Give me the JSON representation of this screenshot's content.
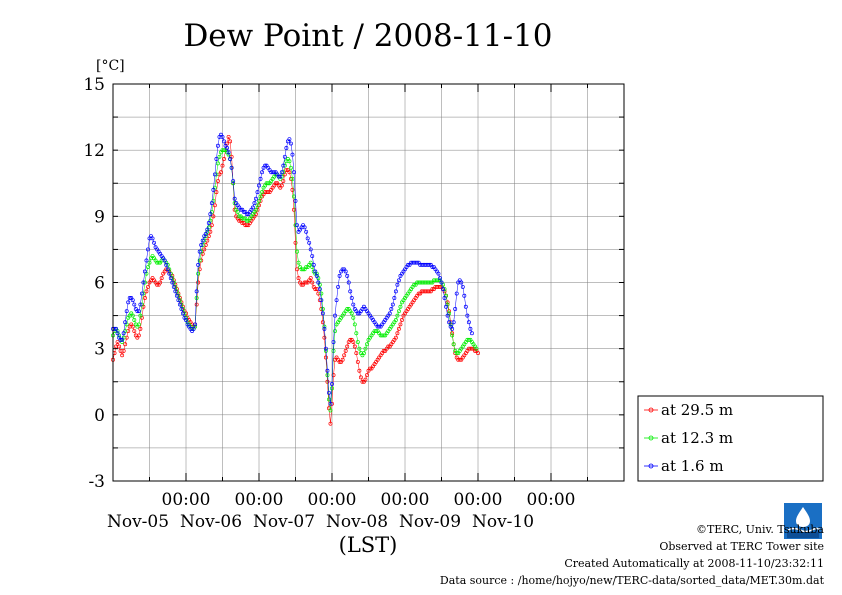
{
  "chart_data": {
    "type": "scatter",
    "title": "Dew Point / 2008-11-10",
    "ylabel": "[°C]",
    "xlabel": "(LST)",
    "ylim": [
      -3,
      15
    ],
    "yticks": [
      -3,
      0,
      3,
      6,
      9,
      12,
      15
    ],
    "xlim": [
      "2008-11-04 00:00",
      "2008-11-11 00:00"
    ],
    "time_tick_label": "00:00",
    "date_labels": [
      "Nov-05",
      "Nov-06",
      "Nov-07",
      "Nov-08",
      "Nov-09",
      "Nov-10"
    ],
    "grid": true,
    "legend_position": "right",
    "x_step_minutes": 30,
    "series": [
      {
        "name": "at 29.5 m",
        "color": "#ff0000",
        "start": "2008-11-04 00:00",
        "values": [
          2.5,
          2.8,
          3.1,
          3.3,
          3.1,
          2.9,
          2.7,
          2.9,
          3.2,
          3.5,
          3.8,
          4.0,
          4.1,
          4.0,
          3.8,
          3.6,
          3.5,
          3.6,
          3.9,
          4.4,
          4.9,
          5.3,
          5.6,
          5.8,
          6.0,
          6.1,
          6.2,
          6.1,
          6.0,
          5.9,
          5.9,
          6.0,
          6.2,
          6.4,
          6.5,
          6.6,
          6.6,
          6.5,
          6.4,
          6.3,
          6.1,
          5.9,
          5.7,
          5.5,
          5.3,
          5.1,
          4.9,
          4.7,
          4.6,
          4.4,
          4.3,
          4.2,
          4.1,
          4.0,
          4.1,
          5.0,
          6.0,
          6.6,
          7.0,
          7.3,
          7.5,
          7.7,
          7.9,
          8.1,
          8.3,
          8.6,
          9.0,
          9.5,
          10.1,
          10.6,
          10.9,
          11.0,
          11.3,
          11.6,
          12.0,
          12.3,
          12.6,
          12.4,
          11.7,
          10.5,
          9.3,
          9.0,
          8.9,
          8.8,
          8.8,
          8.7,
          8.7,
          8.6,
          8.6,
          8.6,
          8.7,
          8.8,
          8.9,
          9.0,
          9.1,
          9.3,
          9.5,
          9.7,
          9.9,
          10.0,
          10.1,
          10.1,
          10.1,
          10.1,
          10.2,
          10.3,
          10.4,
          10.5,
          10.5,
          10.4,
          10.3,
          10.4,
          10.6,
          10.9,
          11.1,
          11.1,
          11.0,
          10.7,
          10.2,
          9.3,
          7.8,
          6.6,
          6.2,
          6.0,
          5.9,
          5.9,
          6.0,
          6.0,
          6.0,
          6.1,
          6.2,
          6.0,
          5.8,
          5.7,
          5.7,
          5.5,
          5.2,
          4.8,
          4.2,
          3.5,
          2.6,
          1.5,
          0.3,
          -0.4,
          0.5,
          1.8,
          2.5,
          2.6,
          2.5,
          2.4,
          2.4,
          2.5,
          2.7,
          2.9,
          3.1,
          3.3,
          3.4,
          3.4,
          3.3,
          3.1,
          2.8,
          2.4,
          2.0,
          1.7,
          1.5,
          1.5,
          1.6,
          1.8,
          2.0,
          2.1,
          2.1,
          2.2,
          2.3,
          2.4,
          2.5,
          2.6,
          2.7,
          2.8,
          2.9,
          2.9,
          3.0,
          3.1,
          3.1,
          3.2,
          3.3,
          3.4,
          3.5,
          3.7,
          3.9,
          4.1,
          4.3,
          4.5,
          4.6,
          4.7,
          4.8,
          4.9,
          5.0,
          5.1,
          5.2,
          5.3,
          5.4,
          5.5,
          5.5,
          5.6,
          5.6,
          5.6,
          5.6,
          5.6,
          5.6,
          5.6,
          5.7,
          5.7,
          5.8,
          5.8,
          5.8,
          5.8,
          5.8,
          5.7,
          5.6,
          5.4,
          5.1,
          4.7,
          4.2,
          3.7,
          3.2,
          2.8,
          2.6,
          2.5,
          2.5,
          2.5,
          2.6,
          2.7,
          2.8,
          2.9,
          3.0,
          3.0,
          3.0,
          3.0,
          2.9,
          2.9,
          2.8
        ]
      },
      {
        "name": "at 12.3 m",
        "color": "#00ee00",
        "start": "2008-11-04 00:00",
        "values": [
          3.6,
          3.8,
          3.9,
          3.8,
          3.6,
          3.4,
          3.3,
          3.5,
          3.8,
          4.1,
          4.4,
          4.5,
          4.6,
          4.5,
          4.3,
          4.1,
          4.0,
          4.1,
          4.5,
          5.0,
          5.5,
          6.0,
          6.4,
          6.7,
          6.9,
          7.1,
          7.2,
          7.1,
          7.0,
          6.9,
          6.9,
          6.9,
          7.0,
          7.1,
          7.0,
          6.9,
          6.8,
          6.6,
          6.4,
          6.2,
          6.0,
          5.8,
          5.6,
          5.4,
          5.2,
          5.0,
          4.8,
          4.6,
          4.4,
          4.2,
          4.1,
          4.0,
          3.9,
          3.9,
          4.0,
          5.3,
          6.4,
          7.0,
          7.4,
          7.7,
          7.9,
          8.1,
          8.3,
          8.5,
          8.8,
          9.2,
          9.7,
          10.3,
          10.9,
          11.4,
          11.7,
          11.9,
          12.0,
          12.0,
          12.0,
          11.9,
          11.8,
          11.6,
          11.2,
          10.5,
          9.6,
          9.3,
          9.2,
          9.0,
          9.0,
          8.9,
          8.9,
          8.9,
          8.8,
          8.8,
          8.9,
          9.0,
          9.1,
          9.2,
          9.3,
          9.5,
          9.7,
          9.9,
          10.1,
          10.3,
          10.4,
          10.5,
          10.5,
          10.5,
          10.6,
          10.7,
          10.8,
          10.9,
          10.9,
          10.8,
          10.7,
          10.8,
          11.0,
          11.3,
          11.5,
          11.6,
          11.5,
          11.2,
          10.7,
          9.9,
          8.6,
          7.4,
          6.9,
          6.7,
          6.6,
          6.6,
          6.6,
          6.7,
          6.7,
          6.8,
          6.9,
          6.7,
          6.5,
          6.4,
          6.4,
          6.2,
          5.9,
          5.5,
          4.8,
          4.0,
          2.9,
          1.8,
          0.7,
          0.2,
          1.2,
          2.9,
          3.8,
          4.1,
          4.2,
          4.3,
          4.4,
          4.5,
          4.6,
          4.7,
          4.8,
          4.8,
          4.7,
          4.6,
          4.4,
          4.1,
          3.7,
          3.3,
          3.0,
          2.8,
          2.7,
          2.8,
          3.0,
          3.2,
          3.4,
          3.5,
          3.6,
          3.7,
          3.8,
          3.8,
          3.8,
          3.7,
          3.6,
          3.6,
          3.6,
          3.6,
          3.7,
          3.8,
          3.9,
          4.0,
          4.1,
          4.2,
          4.3,
          4.5,
          4.7,
          4.9,
          5.1,
          5.2,
          5.3,
          5.4,
          5.5,
          5.6,
          5.7,
          5.8,
          5.9,
          5.9,
          6.0,
          6.0,
          6.0,
          6.0,
          6.0,
          6.0,
          6.0,
          6.0,
          6.0,
          6.0,
          6.0,
          6.1,
          6.1,
          6.1,
          6.1,
          6.1,
          6.0,
          5.9,
          5.7,
          5.4,
          5.0,
          4.6,
          4.1,
          3.6,
          3.2,
          2.9,
          2.8,
          2.8,
          2.9,
          3.0,
          3.1,
          3.2,
          3.3,
          3.4,
          3.4,
          3.4,
          3.3,
          3.2,
          3.1,
          3.0
        ]
      },
      {
        "name": "at 1.6 m",
        "color": "#0000ff",
        "start": "2008-11-04 00:00",
        "values": [
          3.9,
          3.9,
          3.9,
          3.7,
          3.5,
          3.4,
          3.4,
          3.7,
          4.2,
          4.7,
          5.1,
          5.3,
          5.3,
          5.2,
          5.0,
          4.8,
          4.7,
          4.7,
          5.0,
          5.5,
          6.0,
          6.5,
          7.0,
          7.5,
          8.0,
          8.1,
          8.0,
          7.8,
          7.6,
          7.5,
          7.4,
          7.3,
          7.2,
          7.1,
          7.0,
          6.8,
          6.6,
          6.4,
          6.2,
          6.0,
          5.8,
          5.6,
          5.4,
          5.2,
          5.0,
          4.8,
          4.6,
          4.4,
          4.3,
          4.1,
          4.0,
          3.9,
          3.8,
          3.9,
          4.1,
          5.6,
          6.8,
          7.4,
          7.7,
          7.9,
          8.1,
          8.2,
          8.4,
          8.7,
          9.1,
          9.6,
          10.2,
          10.9,
          11.6,
          12.2,
          12.6,
          12.7,
          12.6,
          12.4,
          12.2,
          12.1,
          11.9,
          11.6,
          11.2,
          10.6,
          9.8,
          9.6,
          9.5,
          9.4,
          9.3,
          9.3,
          9.2,
          9.2,
          9.1,
          9.1,
          9.2,
          9.3,
          9.4,
          9.6,
          9.8,
          10.1,
          10.4,
          10.7,
          11.0,
          11.2,
          11.3,
          11.3,
          11.2,
          11.1,
          11.0,
          11.0,
          11.0,
          11.0,
          10.9,
          10.8,
          10.8,
          11.0,
          11.3,
          11.7,
          12.1,
          12.4,
          12.5,
          12.3,
          11.8,
          11.0,
          9.7,
          8.6,
          8.3,
          8.4,
          8.5,
          8.6,
          8.5,
          8.3,
          8.0,
          7.8,
          7.5,
          7.2,
          6.8,
          6.5,
          6.3,
          6.0,
          5.7,
          5.2,
          4.6,
          3.9,
          3.0,
          2.0,
          1.0,
          0.5,
          1.4,
          3.3,
          4.5,
          5.2,
          5.8,
          6.3,
          6.5,
          6.6,
          6.6,
          6.5,
          6.3,
          6.0,
          5.6,
          5.3,
          5.0,
          4.8,
          4.7,
          4.6,
          4.6,
          4.7,
          4.8,
          4.9,
          4.8,
          4.7,
          4.6,
          4.5,
          4.4,
          4.3,
          4.2,
          4.1,
          4.0,
          4.0,
          4.0,
          4.1,
          4.2,
          4.3,
          4.4,
          4.5,
          4.6,
          4.8,
          5.0,
          5.3,
          5.6,
          5.9,
          6.1,
          6.3,
          6.4,
          6.5,
          6.6,
          6.7,
          6.8,
          6.8,
          6.9,
          6.9,
          6.9,
          6.9,
          6.9,
          6.9,
          6.8,
          6.8,
          6.8,
          6.8,
          6.8,
          6.8,
          6.8,
          6.8,
          6.7,
          6.7,
          6.6,
          6.5,
          6.4,
          6.2,
          6.0,
          5.7,
          5.3,
          4.9,
          4.5,
          4.2,
          4.0,
          3.9,
          4.2,
          4.8,
          5.5,
          6.0,
          6.1,
          6.0,
          5.8,
          5.4,
          4.9,
          4.5,
          4.2,
          3.9,
          3.7
        ]
      }
    ]
  },
  "footer": {
    "copyright": "©TERC, Univ. Tsukuba",
    "observed": "Observed at TERC Tower site",
    "created": "Created Automatically at 2008-11-10/23:32:11",
    "source": "Data source : /home/hojyo/new/TERC-data/sorted_data/MET.30m.dat"
  }
}
